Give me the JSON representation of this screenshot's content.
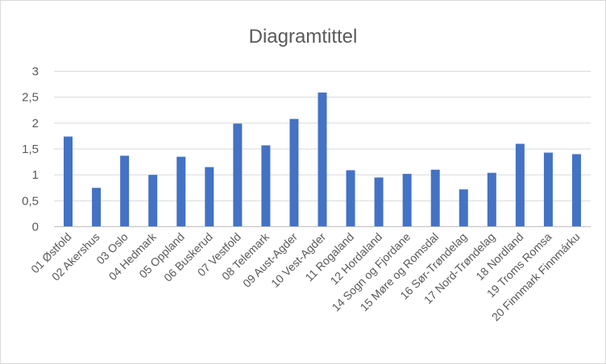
{
  "chart_data": {
    "type": "bar",
    "title": "Diagramtittel",
    "xlabel": "",
    "ylabel": "",
    "ylim": [
      0,
      3
    ],
    "yticks": [
      "0",
      "0,5",
      "1",
      "1,5",
      "2",
      "2,5",
      "3"
    ],
    "grid": true,
    "legend": "none",
    "bar_color": "#4472c4",
    "categories": [
      "01 Østfold",
      "02 Akershus",
      "03 Oslo",
      "04 Hedmark",
      "05 Oppland",
      "06 Buskerud",
      "07 Vestfold",
      "08 Telemark",
      "09 Aust-Agder",
      "10 Vest-Agder",
      "11 Rogaland",
      "12 Hordaland",
      "14 Sogn og Fjordane",
      "15 Møre og Romsdal",
      "16 Sør-Trøndelag",
      "17 Nord-Trøndelag",
      "18 Nordland",
      "19 Troms Romsa",
      "20 Finnmark Finnmárku"
    ],
    "values": [
      1.74,
      0.75,
      1.37,
      1.0,
      1.35,
      1.15,
      1.99,
      1.57,
      2.08,
      2.59,
      1.09,
      0.95,
      1.02,
      1.1,
      0.72,
      1.04,
      1.6,
      1.43,
      1.4
    ]
  }
}
